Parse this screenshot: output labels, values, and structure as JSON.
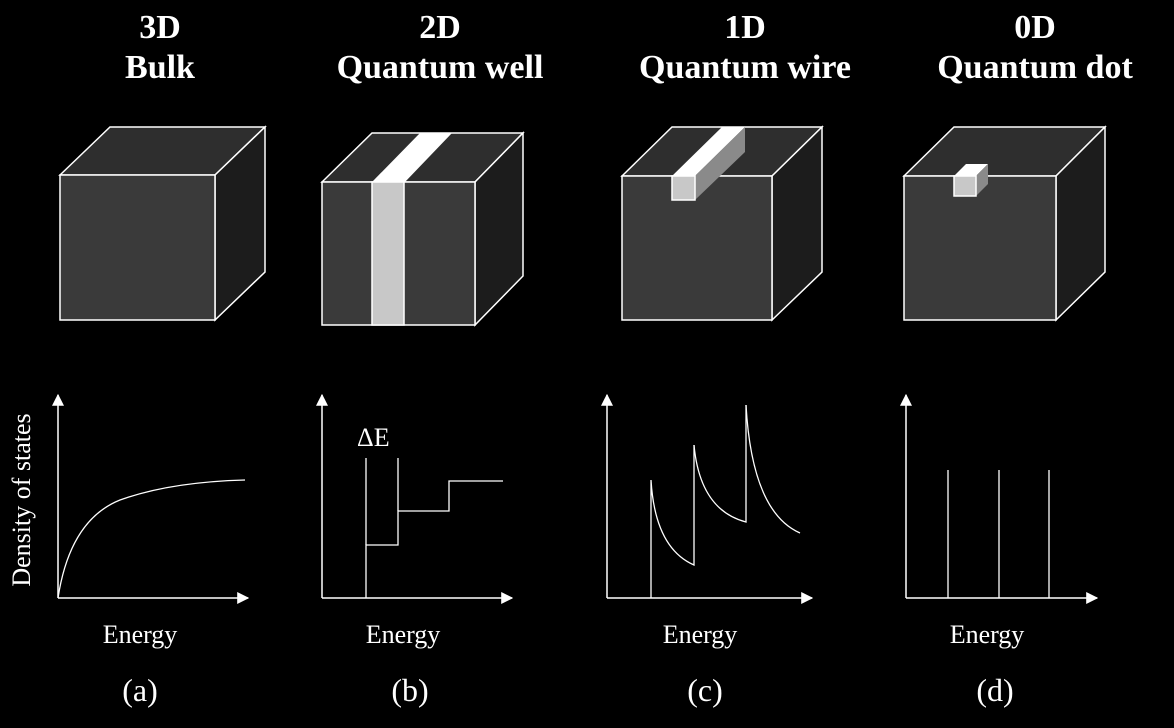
{
  "panels": [
    {
      "dimension": "3D",
      "name": "Bulk",
      "label": "(a)"
    },
    {
      "dimension": "2D",
      "name": "Quantum well",
      "label": "(b)"
    },
    {
      "dimension": "1D",
      "name": "Quantum wire",
      "label": "(c)"
    },
    {
      "dimension": "0D",
      "name": "Quantum dot",
      "label": "(d)"
    }
  ],
  "xlabel": "Energy",
  "ylabel": "Density of states",
  "delta_label": "ΔE",
  "colors": {
    "background": "#000000",
    "cube_front": "#3a3a3a",
    "cube_top": "#2e2e2e",
    "cube_side": "#1c1c1c",
    "edge": "#ffffff",
    "insert": "#c8c8c8"
  }
}
